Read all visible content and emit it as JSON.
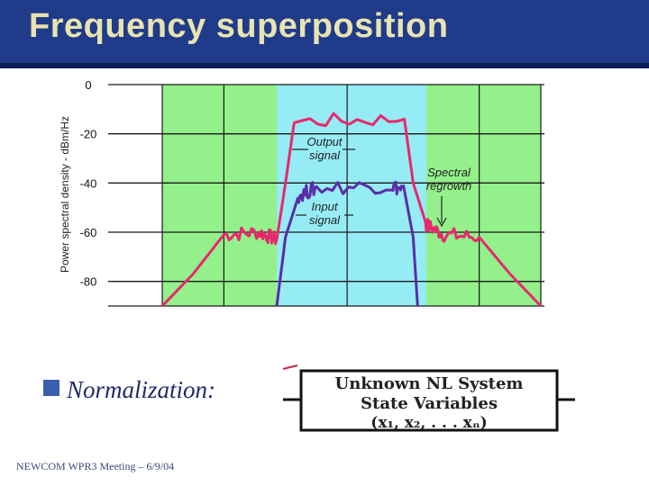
{
  "title": "Frequency superposition",
  "chart": {
    "ylabel": "Power spectral density - dBm/Hz",
    "yticks": [
      "0",
      "-20",
      "-40",
      "-60",
      "-80"
    ],
    "annotations": {
      "output": [
        "Output",
        "signal"
      ],
      "input": [
        "Input",
        "signal"
      ],
      "regrowth": [
        "Spectral",
        "regrowth"
      ]
    },
    "colors": {
      "band_outer": "#94f08a",
      "band_center": "#96ecf4",
      "output_line": "#e8286e",
      "input_line": "#5a2da8"
    }
  },
  "chart_data": {
    "type": "line",
    "title": "",
    "xlabel": "",
    "ylabel": "Power spectral density - dBm/Hz",
    "ylim": [
      -90,
      0
    ],
    "yticks": [
      0,
      -20,
      -40,
      -60,
      -80
    ],
    "grid": true,
    "series": [
      {
        "name": "Output signal",
        "x": [
          0.0,
          0.07,
          0.14,
          0.22,
          0.26,
          0.28,
          0.3,
          0.55,
          0.57,
          0.6,
          0.64,
          0.72,
          0.79,
          0.86
        ],
        "values": [
          -90,
          -77,
          -61,
          -60,
          -63,
          -40,
          -15,
          -14,
          -40,
          -57,
          -61,
          -62,
          -77,
          -90
        ]
      },
      {
        "name": "Input signal",
        "x": [
          0.26,
          0.28,
          0.31,
          0.35,
          0.52,
          0.55,
          0.57,
          0.58
        ],
        "values": [
          -90,
          -62,
          -45,
          -42,
          -41,
          -43,
          -62,
          -90
        ]
      }
    ]
  },
  "bullet_text": "Normalization:",
  "nl_system": {
    "line1": "Unknown NL System",
    "line2": "State Variables",
    "line3": "(x₁, x₂, . . . xₙ)"
  },
  "footer": "NEWCOM  WPR3 Meeting – 6/9/04"
}
